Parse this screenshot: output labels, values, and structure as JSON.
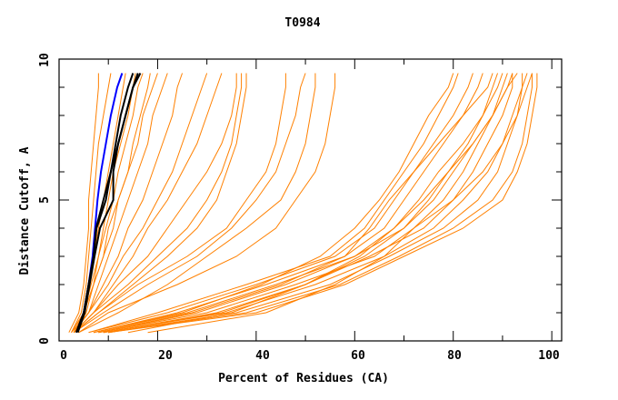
{
  "chart_data": {
    "type": "line",
    "title": "T0984",
    "xlabel": "Percent of Residues (CA)",
    "ylabel": "Distance Cutoff, A",
    "xlim": [
      0,
      102
    ],
    "ylim": [
      0,
      10
    ],
    "xticks": [
      "0",
      "20",
      "40",
      "60",
      "80",
      "100"
    ],
    "yticks": [
      "0",
      "5",
      "10"
    ],
    "grid": false,
    "colors": {
      "other": "#ff8000",
      "highlight_blue": "#0000ff",
      "highlight_black": "#000000"
    },
    "y_levels": [
      0.3,
      1,
      2,
      3,
      4,
      5,
      6,
      7,
      8,
      9,
      9.5
    ],
    "series": [
      {
        "color": "other",
        "x": [
          6,
          20,
          38,
          55,
          62,
          66,
          70,
          74,
          77,
          80,
          81
        ]
      },
      {
        "color": "other",
        "x": [
          7,
          24,
          42,
          58,
          66,
          70,
          74,
          78,
          82,
          85,
          86
        ]
      },
      {
        "color": "other",
        "x": [
          8,
          28,
          46,
          60,
          70,
          75,
          79,
          83,
          86,
          88,
          89
        ]
      },
      {
        "color": "other",
        "x": [
          9,
          32,
          50,
          63,
          74,
          80,
          84,
          87,
          90,
          92,
          92
        ]
      },
      {
        "color": "other",
        "x": [
          10,
          36,
          55,
          67,
          78,
          85,
          89,
          91,
          93,
          94,
          95
        ]
      },
      {
        "color": "other",
        "x": [
          10,
          40,
          58,
          70,
          82,
          90,
          93,
          95,
          96,
          97,
          97
        ]
      },
      {
        "color": "other",
        "x": [
          8,
          30,
          48,
          64,
          72,
          78,
          82,
          85,
          88,
          91,
          92
        ]
      },
      {
        "color": "other",
        "x": [
          7,
          26,
          44,
          60,
          68,
          73,
          77,
          82,
          86,
          89,
          90
        ]
      },
      {
        "color": "other",
        "x": [
          9,
          34,
          52,
          66,
          76,
          82,
          87,
          90,
          92,
          94,
          94
        ]
      },
      {
        "color": "other",
        "x": [
          6,
          22,
          40,
          56,
          64,
          68,
          72,
          76,
          80,
          83,
          84
        ]
      },
      {
        "color": "other",
        "x": [
          10,
          38,
          57,
          69,
          80,
          88,
          92,
          94,
          95,
          96,
          96
        ]
      },
      {
        "color": "other",
        "x": [
          8,
          27,
          45,
          58,
          63,
          67,
          72,
          77,
          82,
          87,
          88
        ]
      },
      {
        "color": "other",
        "x": [
          9,
          33,
          50,
          62,
          70,
          76,
          80,
          84,
          88,
          91,
          93
        ]
      },
      {
        "color": "other",
        "x": [
          7,
          25,
          41,
          53,
          60,
          65,
          69,
          72,
          75,
          79,
          80
        ]
      },
      {
        "color": "other",
        "x": [
          18,
          42,
          56,
          66,
          72,
          80,
          86,
          90,
          93,
          95,
          96
        ]
      },
      {
        "color": "other",
        "x": [
          14,
          35,
          50,
          61,
          68,
          74,
          79,
          84,
          88,
          90,
          91
        ]
      },
      {
        "color": "other",
        "x": [
          4,
          10,
          24,
          36,
          44,
          48,
          52,
          54,
          55,
          56,
          56
        ]
      },
      {
        "color": "other",
        "x": [
          4,
          12,
          22,
          30,
          38,
          45,
          48,
          50,
          51,
          52,
          52
        ]
      },
      {
        "color": "other",
        "x": [
          3,
          9,
          18,
          28,
          35,
          40,
          44,
          46,
          48,
          49,
          50
        ]
      },
      {
        "color": "other",
        "x": [
          3,
          8,
          15,
          22,
          28,
          32,
          34,
          36,
          37,
          38,
          38
        ]
      },
      {
        "color": "other",
        "x": [
          3,
          7,
          12,
          18,
          22,
          26,
          30,
          33,
          35,
          36,
          36
        ]
      },
      {
        "color": "other",
        "x": [
          3,
          7,
          11,
          15,
          18,
          22,
          25,
          28,
          30,
          32,
          33
        ]
      },
      {
        "color": "other",
        "x": [
          3,
          6,
          10,
          13,
          17,
          20,
          23,
          25,
          27,
          29,
          30
        ]
      },
      {
        "color": "other",
        "x": [
          3,
          6,
          9,
          12,
          14,
          17,
          19,
          21,
          23,
          24,
          25
        ]
      },
      {
        "color": "other",
        "x": [
          2.5,
          6,
          8,
          10,
          12,
          14,
          16,
          18,
          19,
          21,
          22
        ]
      },
      {
        "color": "other",
        "x": [
          2.5,
          5,
          7,
          9,
          11,
          12,
          14,
          16,
          17,
          19,
          20
        ]
      },
      {
        "color": "other",
        "x": [
          3,
          8,
          16,
          26,
          34,
          38,
          42,
          44,
          45,
          46,
          46
        ]
      },
      {
        "color": "other",
        "x": [
          3,
          7,
          14,
          20,
          26,
          30,
          33,
          35,
          36,
          37,
          37
        ]
      },
      {
        "color": "other",
        "x": [
          2,
          4,
          5,
          5.5,
          6,
          6,
          6.5,
          7,
          7.5,
          8,
          8
        ]
      },
      {
        "color": "other",
        "x": [
          2.5,
          4.5,
          5.5,
          6,
          6.5,
          7,
          7.5,
          8,
          9,
          10,
          10.5
        ]
      },
      {
        "color": "other",
        "x": [
          3,
          5,
          6,
          7,
          8,
          9,
          10,
          11,
          12,
          13,
          13.5
        ]
      },
      {
        "color": "other",
        "x": [
          3,
          5,
          6.5,
          8,
          9.5,
          11,
          12,
          13.5,
          15,
          16,
          17
        ]
      },
      {
        "color": "other",
        "x": [
          3,
          5.5,
          7,
          9,
          10,
          12,
          14,
          15,
          16.5,
          18,
          18.5
        ]
      },
      {
        "color": "other",
        "x": [
          3,
          5,
          7,
          8,
          9,
          10,
          11,
          12.5,
          14,
          15,
          15.5
        ]
      },
      {
        "color": "highlight_blue",
        "x": [
          3.5,
          5,
          6,
          6.8,
          7.3,
          7.8,
          8.5,
          9.5,
          10.5,
          11.8,
          12.8
        ]
      },
      {
        "color": "highlight_black",
        "x": [
          3.5,
          5,
          6,
          7,
          7.5,
          9,
          10.5,
          11.5,
          12.5,
          14,
          15
        ]
      },
      {
        "color": "highlight_black",
        "x": [
          3.8,
          5.2,
          6.2,
          7.2,
          8.3,
          11,
          11,
          12,
          13.5,
          15,
          16.5
        ]
      },
      {
        "color": "highlight_black",
        "x": [
          3.5,
          5,
          6,
          7,
          7.6,
          9.5,
          10.5,
          12,
          13.5,
          15,
          16
        ]
      }
    ]
  }
}
